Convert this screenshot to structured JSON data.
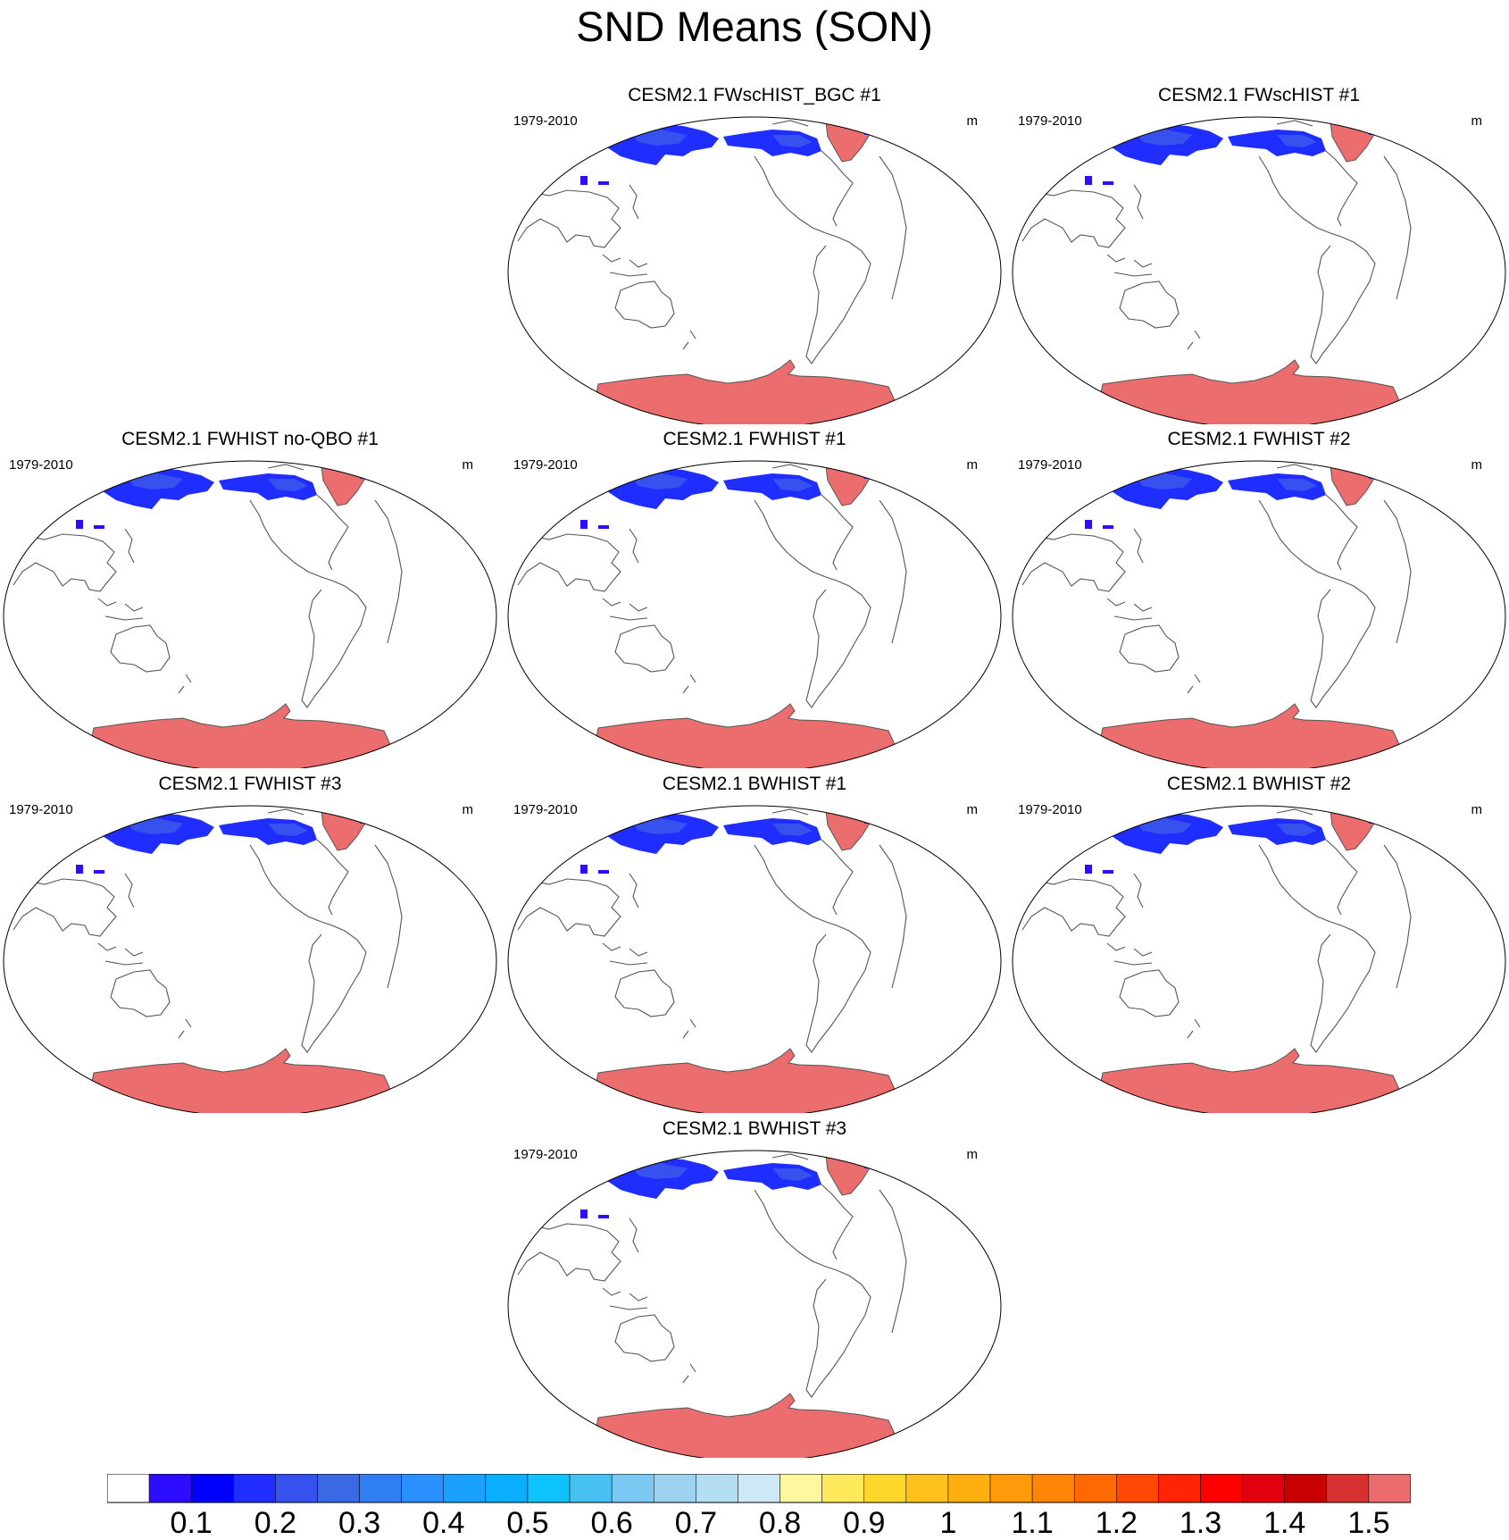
{
  "title": "SND Means (SON)",
  "period": "1979-2010",
  "units": "m",
  "panels": [
    {
      "title": "CESM2.1 FWscHIST_BGC #1"
    },
    {
      "title": "CESM2.1 FWscHIST #1"
    },
    {
      "title": "CESM2.1 FWHIST no-QBO #1"
    },
    {
      "title": "CESM2.1 FWHIST #1"
    },
    {
      "title": "CESM2.1 FWHIST #2"
    },
    {
      "title": "CESM2.1 FWHIST #3"
    },
    {
      "title": "CESM2.1 BWHIST #1"
    },
    {
      "title": "CESM2.1 BWHIST #2"
    },
    {
      "title": "CESM2.1 BWHIST #3"
    }
  ],
  "colorbar": {
    "labels": [
      "0.1",
      "0.2",
      "0.3",
      "0.4",
      "0.5",
      "0.6",
      "0.7",
      "0.8",
      "0.9",
      "1",
      "1.1",
      "1.2",
      "1.3",
      "1.4",
      "1.5"
    ],
    "colors": [
      "#ffffff",
      "#2e0cff",
      "#0000ff",
      "#1f2eff",
      "#3651ed",
      "#3a69e6",
      "#2f7ef2",
      "#2a90ff",
      "#1aa1ff",
      "#0aafff",
      "#0fc3ff",
      "#46c1f2",
      "#7bc9f2",
      "#9dd2f0",
      "#b4def2",
      "#cfe8f5",
      "#fff89f",
      "#ffe85a",
      "#ffd62a",
      "#ffc21c",
      "#ffb010",
      "#ff9a0a",
      "#ff8408",
      "#ff6a05",
      "#ff4804",
      "#ff2403",
      "#ff0000",
      "#e3000e",
      "#c80000",
      "#d73030",
      "#eb6d6d"
    ]
  }
}
